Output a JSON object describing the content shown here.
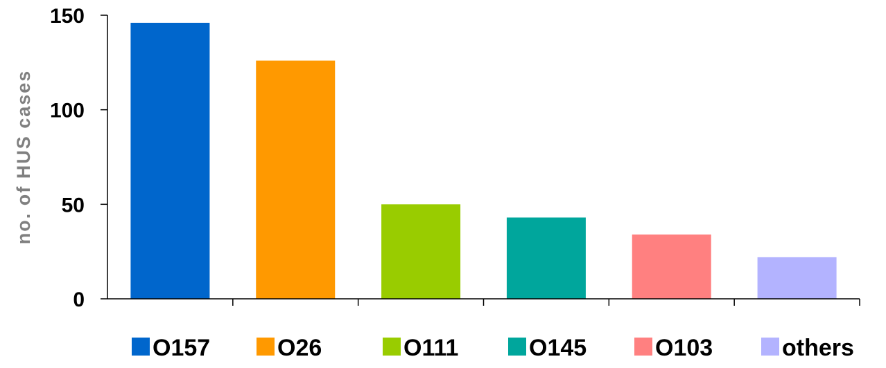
{
  "chart_data": {
    "type": "bar",
    "title": "",
    "xlabel": "",
    "ylabel": "no. of HUS cases",
    "ylim": [
      0,
      150
    ],
    "yticks": [
      0,
      50,
      100,
      150
    ],
    "grid": false,
    "legend": "bottom",
    "series": [
      {
        "name": "O157",
        "value": 146,
        "color": "#0066CC"
      },
      {
        "name": "O26",
        "value": 126,
        "color": "#FF9900"
      },
      {
        "name": "O111",
        "value": 50,
        "color": "#99CC00"
      },
      {
        "name": "O145",
        "value": 43,
        "color": "#00A69C"
      },
      {
        "name": "O103",
        "value": 34,
        "color": "#FF8080"
      },
      {
        "name": "others",
        "value": 22,
        "color": "#B3B3FF"
      }
    ]
  }
}
